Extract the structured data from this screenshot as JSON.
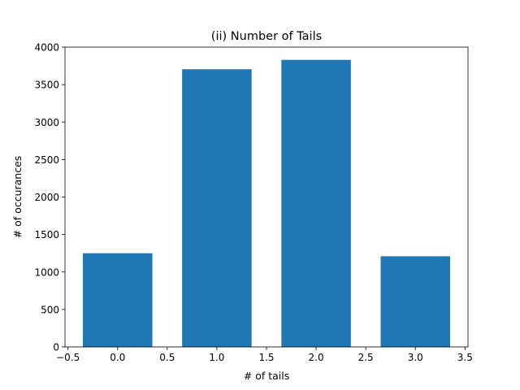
{
  "chart_data": {
    "type": "bar",
    "title": "(ii) Number of Tails",
    "xlabel": "# of tails",
    "ylabel": "# of occurances",
    "x": [
      0,
      1,
      2,
      3
    ],
    "values": [
      1250,
      3705,
      3830,
      1210
    ],
    "bar_width": 0.7,
    "xlim": [
      -0.53,
      3.53
    ],
    "ylim": [
      0,
      4000
    ],
    "xticks": [
      -0.5,
      0.0,
      0.5,
      1.0,
      1.5,
      2.0,
      2.5,
      3.0,
      3.5
    ],
    "xtick_labels": [
      "−0.5",
      "0.0",
      "0.5",
      "1.0",
      "1.5",
      "2.0",
      "2.5",
      "3.0",
      "3.5"
    ],
    "yticks": [
      0,
      500,
      1000,
      1500,
      2000,
      2500,
      3000,
      3500,
      4000
    ],
    "ytick_labels": [
      "0",
      "500",
      "1000",
      "1500",
      "2000",
      "2500",
      "3000",
      "3500",
      "4000"
    ],
    "grid": false,
    "bar_color": "#1f77b4"
  }
}
